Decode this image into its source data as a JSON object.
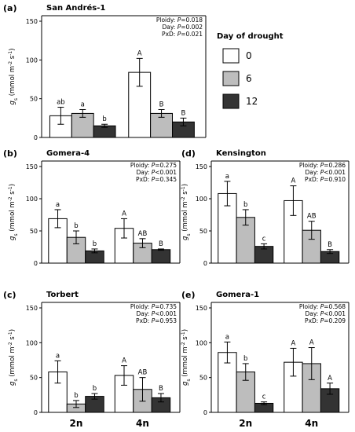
{
  "figure": {
    "legend": {
      "title": "Day of drought",
      "entries": [
        {
          "label": "0",
          "color": "#ffffff"
        },
        {
          "label": "6",
          "color": "#bdbdbd"
        },
        {
          "label": "12",
          "color": "#333333"
        }
      ]
    },
    "x_categories": [
      "2n",
      "4n"
    ],
    "y_label_main": "g",
    "y_label_sub": "s",
    "y_label_units": " (mmol m",
    "y_label_exp1": "-2",
    "y_label_mid": " s",
    "y_label_exp2": "-1",
    "y_label_end": ")"
  },
  "chart_data": [
    {
      "type": "bar",
      "id": "a",
      "letter": "(a)",
      "title": "San Andrés-1",
      "categories": [
        "2n",
        "4n"
      ],
      "ylim": [
        0,
        150
      ],
      "yticks": [
        0,
        50,
        100,
        150
      ],
      "stats": [
        [
          "Ploidy: ",
          "P",
          "=0.018"
        ],
        [
          "Day: ",
          "P",
          "=0.002"
        ],
        [
          "PxD: ",
          "P",
          "=0.021"
        ]
      ],
      "series": [
        {
          "name": "0",
          "values": [
            28,
            84
          ],
          "errors": [
            11,
            18
          ]
        },
        {
          "name": "6",
          "values": [
            31,
            31
          ],
          "errors": [
            5,
            5
          ]
        },
        {
          "name": "12",
          "values": [
            15,
            20
          ],
          "errors": [
            2,
            5
          ]
        }
      ],
      "letters": [
        [
          "ab",
          "a",
          "b"
        ],
        [
          "A",
          "B",
          "B"
        ]
      ]
    },
    {
      "type": "bar",
      "id": "b",
      "letter": "(b)",
      "title": "Gomera-4",
      "categories": [
        "2n",
        "4n"
      ],
      "ylim": [
        0,
        150
      ],
      "yticks": [
        0,
        50,
        100,
        150
      ],
      "stats": [
        [
          "Ploidy: ",
          "P",
          "=0.275"
        ],
        [
          "Day: ",
          "P",
          "<0.001"
        ],
        [
          "PxD: ",
          "P",
          "=0.345"
        ]
      ],
      "series": [
        {
          "name": "0",
          "values": [
            69,
            54
          ],
          "errors": [
            14,
            15
          ]
        },
        {
          "name": "6",
          "values": [
            40,
            31
          ],
          "errors": [
            10,
            7
          ]
        },
        {
          "name": "12",
          "values": [
            19,
            21
          ],
          "errors": [
            3,
            1
          ]
        }
      ],
      "letters": [
        [
          "a",
          "b",
          "b"
        ],
        [
          "A",
          "AB",
          "B"
        ]
      ]
    },
    {
      "type": "bar",
      "id": "c",
      "letter": "(c)",
      "title": "Torbert",
      "categories": [
        "2n",
        "4n"
      ],
      "ylim": [
        0,
        150
      ],
      "yticks": [
        0,
        50,
        100,
        150
      ],
      "stats": [
        [
          "Ploidy: ",
          "P",
          "=0.735"
        ],
        [
          "Day: ",
          "P",
          "<0.001"
        ],
        [
          "PxD: ",
          "P",
          "=0.953"
        ]
      ],
      "series": [
        {
          "name": "0",
          "values": [
            58,
            53
          ],
          "errors": [
            16,
            14
          ]
        },
        {
          "name": "6",
          "values": [
            12,
            33
          ],
          "errors": [
            5,
            17
          ]
        },
        {
          "name": "12",
          "values": [
            23,
            21
          ],
          "errors": [
            4,
            6
          ]
        }
      ],
      "letters": [
        [
          "a",
          "b",
          "b"
        ],
        [
          "A",
          "AB",
          "B"
        ]
      ]
    },
    {
      "type": "bar",
      "id": "d",
      "letter": "(d)",
      "title": "Kensington",
      "categories": [
        "2n",
        "4n"
      ],
      "ylim": [
        0,
        150
      ],
      "yticks": [
        0,
        50,
        100,
        150
      ],
      "stats": [
        [
          "Ploidy: ",
          "P",
          "=0.286"
        ],
        [
          "Day: ",
          "P",
          "<0.001"
        ],
        [
          "PxD: ",
          "P",
          "=0.910"
        ]
      ],
      "series": [
        {
          "name": "0",
          "values": [
            108,
            97
          ],
          "errors": [
            19,
            23
          ]
        },
        {
          "name": "6",
          "values": [
            71,
            51
          ],
          "errors": [
            12,
            14
          ]
        },
        {
          "name": "12",
          "values": [
            26,
            18
          ],
          "errors": [
            4,
            3
          ]
        }
      ],
      "letters": [
        [
          "a",
          "b",
          "c"
        ],
        [
          "A",
          "AB",
          "B"
        ]
      ]
    },
    {
      "type": "bar",
      "id": "e",
      "letter": "(e)",
      "title": "Gomera-1",
      "categories": [
        "2n",
        "4n"
      ],
      "ylim": [
        0,
        150
      ],
      "yticks": [
        0,
        50,
        100,
        150
      ],
      "stats": [
        [
          "Ploidy: ",
          "P",
          "=0.568"
        ],
        [
          "Day: ",
          "P",
          "<0.001"
        ],
        [
          "PxD: ",
          "P",
          "=0.209"
        ]
      ],
      "series": [
        {
          "name": "0",
          "values": [
            86,
            72
          ],
          "errors": [
            15,
            20
          ]
        },
        {
          "name": "6",
          "values": [
            58,
            70
          ],
          "errors": [
            12,
            23
          ]
        },
        {
          "name": "12",
          "values": [
            13,
            34
          ],
          "errors": [
            2,
            8
          ]
        }
      ],
      "letters": [
        [
          "a",
          "b",
          "c"
        ],
        [
          "A",
          "A",
          "A"
        ]
      ]
    }
  ]
}
